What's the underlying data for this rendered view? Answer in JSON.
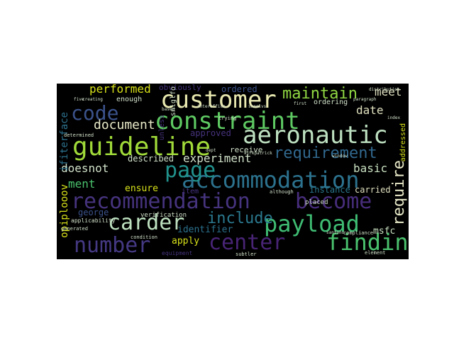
{
  "words": {
    "guideline": "guideline",
    "customer": "customer",
    "constraint": "constraint",
    "aeronautic": "aeronautic",
    "accommodation": "accommodation",
    "recommendation": "recommendation",
    "become": "become",
    "payload": "payload",
    "carder": "carder",
    "finding": "finding",
    "number": "number",
    "center": "center",
    "code": "code",
    "page": "page",
    "maintain": "maintain",
    "requirement": "requirement",
    "include": "include",
    "document": "document",
    "performed": "performed",
    "experiment": "experiment",
    "date": "date",
    "meet": "meet",
    "require": "require",
    "doesnot": "doesnot",
    "ment": "ment",
    "basic": "basic",
    "ensure": "ensure",
    "instance": "instance",
    "carried": "carried",
    "identifier": "identifier",
    "apply": "apply",
    "george": "george",
    "msfc": "msfc",
    "ifiterface": "ifiterface",
    "opiplooov": "opiplooov",
    "approved": "approved",
    "described": "described",
    "ordered": "ordered",
    "obviously": "obviously",
    "ordering": "ordering",
    "enough": "enough",
    "receive": "receive",
    "verification": "verification",
    "addressed": "addressed",
    "item": "item",
    "unless": "unless",
    "snlglfo": "snlglfo",
    "placed": "placed",
    "compliance": "compliance",
    "applicability": "applicability",
    "condition": "condition",
    "equipment": "equipment",
    "subtler": "subtler",
    "generated": "generated",
    "determined": "determined",
    "creating": "creating",
    "first": "first",
    "paragraph": "paragraph",
    "although": "although",
    "element": "element",
    "trying": "trying",
    "kirkpatrick": "kirkpatrick",
    "based": "based",
    "interoffice": "interoffice",
    "snoelvs": "snoelvs",
    "santono": "santono",
    "five": "five",
    "dept": "dept",
    "index": "index",
    "window": "window",
    "distribution": "distribution"
  },
  "palette": {
    "background": "#000000",
    "dark_purple": "#46337e",
    "indigo": "#365c8d",
    "blue": "#277f8e",
    "teal": "#1fa187",
    "green": "#4ac16d",
    "lime": "#a0da39",
    "yellow": "#dde318"
  }
}
